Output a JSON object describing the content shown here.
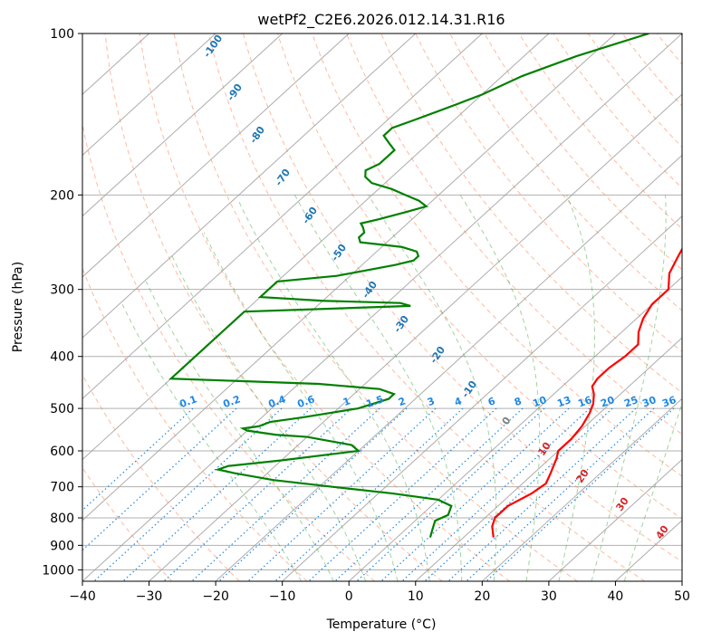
{
  "chart_data": {
    "type": "line",
    "title": "wetPf2_C2E6.2026.012.14.31.R16",
    "xlabel": "Temperature (°C)",
    "ylabel": "Pressure (hPa)",
    "xlim": [
      -40,
      50
    ],
    "ylim": [
      1050,
      100
    ],
    "y_scale": "log",
    "grid": true,
    "x_ticks": [
      -40,
      -30,
      -20,
      -10,
      0,
      10,
      20,
      30,
      40,
      50
    ],
    "y_ticks": [
      100,
      200,
      300,
      400,
      500,
      600,
      700,
      800,
      900,
      1000
    ],
    "colors": {
      "temperature": "#ff0000",
      "dewpoint": "#008000",
      "isotherm": "#9e9e9e",
      "dry_adiabat": "#ff7f50",
      "moist_adiabat": "#2ca02c",
      "mixing_ratio": "#1e88e5",
      "upper_label": "#1f77b4",
      "lower_label": "#d62728",
      "zero_label": "#808080"
    },
    "series": [
      {
        "key": "temperature",
        "pressure": [
          870,
          830,
          800,
          760,
          720,
          690,
          660,
          620,
          600,
          570,
          540,
          510,
          490,
          470,
          455,
          440,
          420,
          400,
          380,
          360,
          340,
          320,
          300,
          280,
          260,
          240,
          220,
          200,
          180,
          160,
          140,
          120,
          110,
          100
        ],
        "temperature": [
          14.5,
          12.5,
          11.5,
          11.5,
          13,
          13.5,
          12.5,
          11,
          10,
          10,
          9.5,
          8.5,
          7.5,
          6,
          4.5,
          4,
          4,
          4.5,
          4.5,
          2.5,
          1,
          0,
          0,
          -2.5,
          -4,
          -5.5,
          -7.5,
          -10.5,
          -15,
          -19,
          -24,
          -31,
          -35.5,
          -40
        ]
      },
      {
        "key": "dewpoint",
        "pressure": [
          870,
          840,
          810,
          790,
          760,
          740,
          720,
          700,
          680,
          660,
          650,
          640,
          625,
          600,
          585,
          575,
          565,
          560,
          550,
          545,
          540,
          530,
          520,
          500,
          480,
          470,
          460,
          450,
          440,
          330,
          325,
          322,
          318,
          315,
          310,
          290,
          283,
          270,
          265,
          260,
          255,
          250,
          245,
          240,
          235,
          230,
          226,
          222,
          215,
          210,
          205,
          200,
          195,
          190,
          185,
          180,
          175,
          170,
          165,
          160,
          155,
          150,
          145,
          140,
          135,
          130,
          120,
          110,
          100
        ],
        "temperature": [
          5,
          4,
          3,
          4,
          3,
          0,
          -8,
          -18,
          -28,
          -35,
          -38,
          -37,
          -30,
          -20,
          -22,
          -26,
          -30,
          -35,
          -40,
          -41,
          -39,
          -38,
          -34,
          -27,
          -24,
          -24,
          -27,
          -37,
          -60,
          -60,
          -45,
          -36,
          -38,
          -50,
          -60,
          -60,
          -52,
          -45,
          -43,
          -43,
          -44,
          -47,
          -54,
          -55,
          -55,
          -56,
          -57,
          -55,
          -52,
          -50,
          -52,
          -55,
          -58,
          -62,
          -64,
          -65,
          -64,
          -64,
          -64,
          -66,
          -68,
          -68,
          -66,
          -64,
          -62,
          -60,
          -57,
          -52,
          -45
        ]
      }
    ],
    "isotherm_temps": [
      -120,
      -110,
      -100,
      -90,
      -80,
      -70,
      -60,
      -50,
      -40,
      -30,
      -20,
      -10,
      0,
      10,
      20,
      30,
      40,
      50
    ],
    "dry_adiabat_potential_temps_c": [
      -30,
      -20,
      -10,
      0,
      10,
      20,
      30,
      40,
      50,
      60,
      70,
      80,
      90,
      100,
      110,
      120,
      130,
      140,
      150,
      160,
      170,
      180,
      190,
      200
    ],
    "moist_adiabat_temps": [
      -10,
      -5,
      0,
      5,
      10,
      15,
      20,
      25,
      30,
      35,
      40
    ],
    "mixing_ratio_lines": [
      "0.1",
      "0.2",
      "0.4",
      "0.6",
      "1",
      "1.5",
      "2",
      "3",
      "4",
      "6",
      "8",
      "10",
      "13",
      "16",
      "20",
      "25",
      "30",
      "36"
    ],
    "upper_labels": [
      "-100",
      "-90",
      "-80",
      "-70",
      "-60",
      "-50",
      "-40",
      "-30",
      "-20",
      "-10"
    ],
    "zero_label": "0",
    "lower_labels": [
      "10",
      "20",
      "30",
      "40"
    ]
  }
}
